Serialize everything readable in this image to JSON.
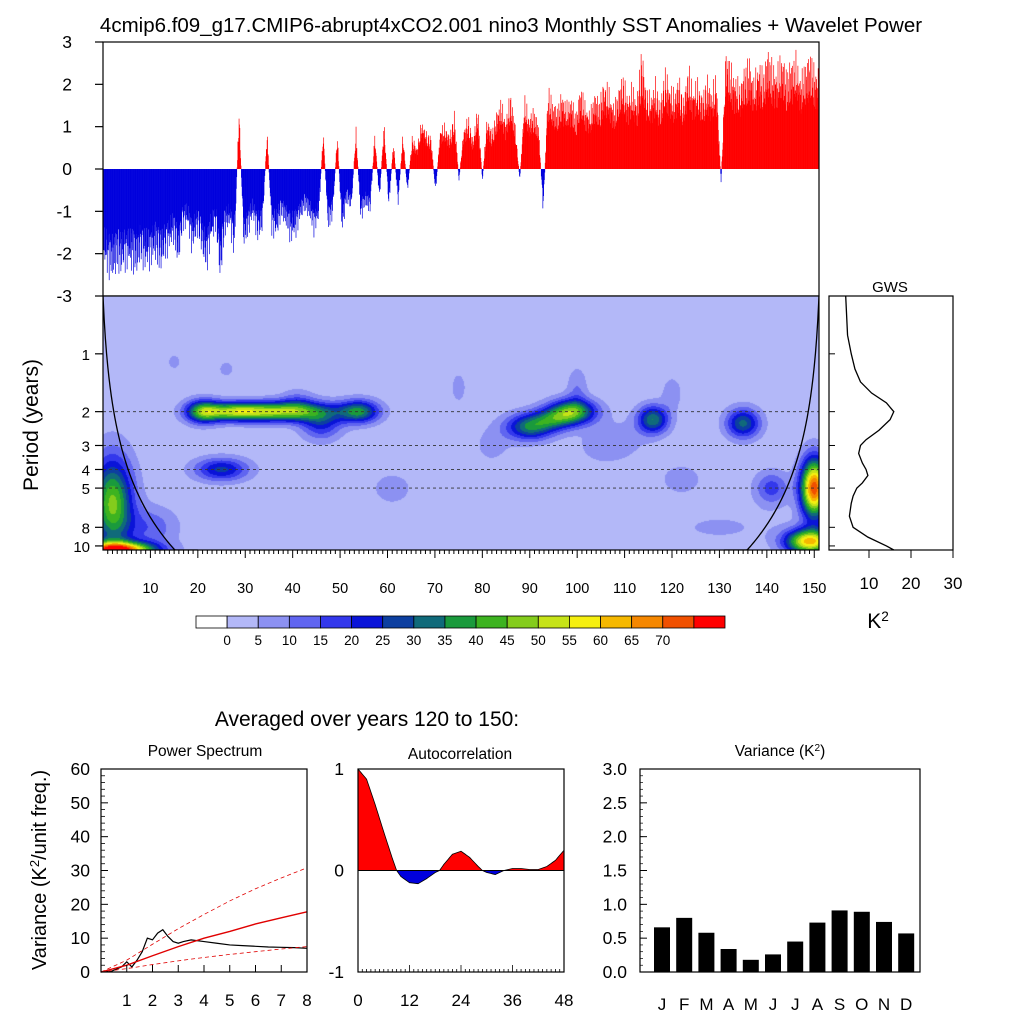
{
  "main_title": "4cmip6.f09_g17.CMIP6-abrupt4xCO2.001 nino3 Monthly SST Anomalies + Wavelet Power",
  "colors": {
    "positive": "#ff0000",
    "negative": "#0000dd",
    "spectrum": "#000000",
    "red_noise": "#e00000"
  },
  "chart_data": [
    {
      "id": "sst-anomaly",
      "type": "bar",
      "title": "",
      "xlabel": "",
      "ylabel": "",
      "xlim": [
        0,
        151
      ],
      "ylim": [
        -3,
        3
      ],
      "yticks": [
        "3",
        "2",
        "1",
        "0",
        "-1",
        "-2",
        "-3"
      ],
      "anomalies_by_year": [
        -2.4,
        -2.6,
        -2.7,
        -2.5,
        -2.6,
        -2.4,
        -2.5,
        -2.6,
        -2.3,
        -2.5,
        -2.4,
        -2.2,
        -2.5,
        -2.3,
        -2.0,
        -1.8,
        -2.4,
        -1.5,
        -1.4,
        -2.1,
        -1.6,
        -2.0,
        -2.6,
        -1.8,
        -1.5,
        -2.8,
        -1.6,
        -1.4,
        -2.2,
        1.6,
        -2.0,
        -1.6,
        -1.2,
        -1.8,
        -1.5,
        1.0,
        -1.6,
        -1.7,
        -1.2,
        -1.4,
        -1.8,
        -1.7,
        -1.3,
        -1.0,
        -1.2,
        -1.6,
        -1.3,
        1.0,
        -1.5,
        -1.2,
        0.9,
        -1.6,
        -0.8,
        -1.0,
        1.0,
        -1.3,
        -0.9,
        -1.1,
        0.9,
        -0.8,
        1.2,
        -1.0,
        0.7,
        -0.9,
        0.9,
        -0.6,
        0.8,
        0.5,
        1.2,
        0.9,
        0.8,
        -0.6,
        1.0,
        1.1,
        0.8,
        1.4,
        -0.3,
        1.0,
        1.3,
        0.7,
        1.6,
        -0.3,
        1.3,
        0.9,
        1.4,
        1.7,
        1.2,
        1.9,
        1.1,
        -0.3,
        1.8,
        1.3,
        1.5,
        1.1,
        -1.1,
        2.0,
        1.7,
        1.5,
        1.9,
        1.6,
        1.8,
        1.3,
        2.1,
        1.6,
        1.4,
        1.9,
        1.7,
        2.2,
        2.0,
        1.6,
        1.9,
        2.4,
        1.8,
        2.1,
        1.7,
        3.0,
        2.0,
        1.8,
        2.2,
        1.6,
        2.5,
        2.1,
        1.9,
        2.3,
        1.7,
        2.6,
        2.0,
        2.2,
        1.8,
        2.3,
        1.9,
        2.4,
        -0.4,
        3.0,
        2.6,
        2.3,
        2.1,
        2.5,
        2.8,
        2.2,
        2.7,
        2.4,
        3.0,
        2.6,
        2.5,
        2.9,
        2.4,
        2.7,
        2.8,
        2.3,
        2.6,
        2.9,
        2.5
      ]
    },
    {
      "id": "wavelet-power",
      "type": "heatmap",
      "title": "",
      "xlabel": "",
      "ylabel": "Period (years)",
      "xlim": [
        0,
        151
      ],
      "xticks": [
        10,
        20,
        30,
        40,
        50,
        60,
        70,
        80,
        90,
        100,
        110,
        120,
        130,
        140,
        150
      ],
      "period_ticks": [
        1,
        2,
        3,
        4,
        5,
        8,
        10
      ],
      "period_range": [
        0.5,
        10.5
      ],
      "significant_periods": [
        2,
        3,
        4,
        5
      ],
      "power_blobs": [
        {
          "year": 21,
          "period": 2.0,
          "sx": 2.5,
          "sy": 0.14,
          "amp": 35
        },
        {
          "year": 27,
          "period": 2.0,
          "sx": 4.0,
          "sy": 0.11,
          "amp": 25
        },
        {
          "year": 36,
          "period": 2.0,
          "sx": 8.0,
          "sy": 0.12,
          "amp": 48
        },
        {
          "year": 46,
          "period": 2.3,
          "sx": 3.0,
          "sy": 0.2,
          "amp": 20
        },
        {
          "year": 54,
          "period": 2.0,
          "sx": 3.0,
          "sy": 0.14,
          "amp": 33
        },
        {
          "year": 25,
          "period": 4.0,
          "sx": 4.0,
          "sy": 0.14,
          "amp": 25
        },
        {
          "year": 41,
          "period": 1.8,
          "sx": 2.5,
          "sy": 0.16,
          "amp": 10
        },
        {
          "year": 90,
          "period": 2.4,
          "sx": 3.5,
          "sy": 0.16,
          "amp": 33
        },
        {
          "year": 99,
          "period": 2.0,
          "sx": 3.5,
          "sy": 0.15,
          "amp": 42
        },
        {
          "year": 95,
          "period": 2.2,
          "sx": 3.0,
          "sy": 0.13,
          "amp": 20
        },
        {
          "year": 116,
          "period": 2.2,
          "sx": 2.3,
          "sy": 0.17,
          "amp": 33
        },
        {
          "year": 135,
          "period": 2.3,
          "sx": 2.5,
          "sy": 0.18,
          "amp": 30
        },
        {
          "year": 2,
          "period": 6.0,
          "sx": 3.0,
          "sy": 0.55,
          "amp": 45
        },
        {
          "year": 3,
          "period": 10.5,
          "sx": 5.5,
          "sy": 0.1,
          "amp": 72
        },
        {
          "year": 150,
          "period": 5.0,
          "sx": 2.0,
          "sy": 0.35,
          "amp": 72
        },
        {
          "year": 149,
          "period": 9.5,
          "sx": 3.5,
          "sy": 0.15,
          "amp": 60
        },
        {
          "year": 141,
          "period": 5.0,
          "sx": 2.5,
          "sy": 0.2,
          "amp": 16
        },
        {
          "year": 61,
          "period": 5.0,
          "sx": 4.0,
          "sy": 0.25,
          "amp": 5
        },
        {
          "year": 82,
          "period": 3.0,
          "sx": 3.0,
          "sy": 0.25,
          "amp": 5
        },
        {
          "year": 105,
          "period": 3.0,
          "sx": 4.0,
          "sy": 0.25,
          "amp": 5
        },
        {
          "year": 122,
          "period": 4.5,
          "sx": 3.0,
          "sy": 0.18,
          "amp": 7
        },
        {
          "year": 110,
          "period": 2.8,
          "sx": 4.0,
          "sy": 0.25,
          "amp": 4
        },
        {
          "year": 10,
          "period": 8.0,
          "sx": 4.0,
          "sy": 0.25,
          "amp": 12
        },
        {
          "year": 47,
          "period": 8.0,
          "sx": 10.0,
          "sy": 0.22,
          "amp": 3
        },
        {
          "year": 68,
          "period": 8.0,
          "sx": 8.0,
          "sy": 0.2,
          "amp": 2
        },
        {
          "year": 130,
          "period": 8.0,
          "sx": 10.0,
          "sy": 0.25,
          "amp": 4
        },
        {
          "year": 75,
          "period": 1.5,
          "sx": 1.2,
          "sy": 0.2,
          "amp": 6
        },
        {
          "year": 100,
          "period": 1.5,
          "sx": 1.5,
          "sy": 0.25,
          "amp": 8
        },
        {
          "year": 120,
          "period": 1.6,
          "sx": 1.5,
          "sy": 0.2,
          "amp": 7
        },
        {
          "year": 26,
          "period": 1.2,
          "sx": 1.2,
          "sy": 0.1,
          "amp": 6
        },
        {
          "year": 15,
          "period": 1.1,
          "sx": 1.0,
          "sy": 0.1,
          "amp": 6
        }
      ]
    },
    {
      "id": "global-wavelet-spectrum",
      "type": "line",
      "title": "GWS",
      "xlabel": "K²",
      "ylabel": "",
      "xlim": [
        0,
        30
      ],
      "xticks": [
        10,
        20,
        30
      ],
      "period": [
        0.5,
        0.8,
        1.0,
        1.2,
        1.4,
        1.6,
        1.8,
        2.0,
        2.2,
        2.5,
        2.8,
        3.0,
        3.3,
        3.7,
        4.0,
        4.3,
        4.7,
        5.0,
        5.5,
        6.0,
        7.0,
        8.0,
        9.0,
        10.0,
        10.5
      ],
      "power": [
        1.0,
        1.5,
        2.5,
        3.5,
        5.0,
        8.0,
        12.0,
        14.0,
        13.0,
        10.0,
        6.5,
        5.0,
        4.5,
        5.5,
        6.5,
        7.0,
        5.5,
        4.0,
        3.0,
        2.5,
        2.0,
        3.0,
        7.0,
        12.0,
        14.0
      ]
    },
    {
      "id": "power-spectrum",
      "type": "line",
      "title": "Power Spectrum",
      "xlabel": "",
      "ylabel": "Variance (K²/unit freq.)",
      "xlim": [
        0,
        8
      ],
      "ylim": [
        0,
        60
      ],
      "xticks": [
        1,
        2,
        3,
        4,
        5,
        6,
        7,
        8
      ],
      "yticks": [
        0,
        10,
        20,
        30,
        40,
        50,
        60
      ],
      "series": [
        {
          "style": "spectrum",
          "x": [
            0,
            0.4,
            0.8,
            1.0,
            1.2,
            1.4,
            1.6,
            1.8,
            2.0,
            2.2,
            2.4,
            2.6,
            2.8,
            3.0,
            3.2,
            3.5,
            4.0,
            4.5,
            5.0,
            5.5,
            6.0,
            6.5,
            7.0,
            7.5,
            8.0
          ],
          "y": [
            0,
            0.2,
            1.5,
            3.0,
            1.5,
            3.5,
            6.0,
            10.0,
            9.5,
            11.5,
            12.5,
            10.5,
            9.0,
            8.5,
            9.0,
            9.5,
            9.0,
            8.5,
            8.0,
            7.8,
            7.6,
            7.4,
            7.3,
            7.2,
            7.0
          ]
        },
        {
          "style": "red-noise",
          "x": [
            0,
            1,
            2,
            3,
            4,
            5,
            6,
            7,
            8
          ],
          "y": [
            0,
            2.0,
            4.8,
            7.5,
            10.0,
            12.0,
            14.2,
            16.0,
            17.8
          ]
        },
        {
          "style": "red-noise-upper",
          "x": [
            0,
            1,
            2,
            3,
            4,
            5,
            6,
            7,
            8
          ],
          "y": [
            0,
            3.5,
            8.2,
            12.8,
            17.0,
            21.0,
            24.6,
            27.8,
            30.8
          ]
        },
        {
          "style": "red-noise-lower",
          "x": [
            0,
            1,
            2,
            3,
            4,
            5,
            6,
            7,
            8
          ],
          "y": [
            0,
            1.0,
            2.2,
            3.3,
            4.3,
            5.2,
            6.0,
            6.8,
            7.5
          ]
        }
      ]
    },
    {
      "id": "autocorrelation",
      "type": "area",
      "title": "Autocorrelation",
      "xlabel": "",
      "ylabel": "",
      "xlim": [
        0,
        48
      ],
      "ylim": [
        -1,
        1
      ],
      "xticks": [
        0,
        12,
        24,
        36,
        48
      ],
      "yticks": [
        1,
        0,
        -1
      ],
      "lag": [
        0,
        2,
        4,
        6,
        8,
        9,
        10,
        12,
        14,
        16,
        18,
        19,
        20,
        22,
        24,
        26,
        28,
        29,
        30,
        32,
        34,
        36,
        38,
        40,
        42,
        44,
        46,
        48
      ],
      "acf": [
        1.0,
        0.9,
        0.65,
        0.38,
        0.12,
        0.0,
        -0.06,
        -0.12,
        -0.13,
        -0.08,
        -0.02,
        0.0,
        0.06,
        0.16,
        0.19,
        0.13,
        0.04,
        0.0,
        -0.02,
        -0.04,
        0.0,
        0.02,
        0.02,
        0.01,
        0.01,
        0.04,
        0.1,
        0.2
      ]
    },
    {
      "id": "monthly-variance",
      "type": "bar",
      "title": "Variance (K²)",
      "xlabel": "",
      "ylabel": "",
      "ylim": [
        0,
        3.0
      ],
      "yticks": [
        "3.0",
        "2.5",
        "2.0",
        "1.5",
        "1.0",
        "0.5",
        "0.0"
      ],
      "categories": [
        "J",
        "F",
        "M",
        "A",
        "M",
        "J",
        "J",
        "A",
        "S",
        "O",
        "N",
        "D"
      ],
      "values": [
        0.66,
        0.8,
        0.58,
        0.34,
        0.18,
        0.26,
        0.45,
        0.73,
        0.91,
        0.89,
        0.74,
        0.57
      ]
    }
  ],
  "bottom_section": {
    "heading": "Averaged over years 120 to 150:"
  },
  "wavelet_colorbar": {
    "labels": [
      "0",
      "5",
      "10",
      "15",
      "20",
      "25",
      "30",
      "35",
      "40",
      "45",
      "50",
      "55",
      "60",
      "65",
      "70"
    ],
    "colors": [
      "#ffffff",
      "#b3b8f8",
      "#8c91f2",
      "#6065f0",
      "#3338ec",
      "#0a14d8",
      "#0d3fa0",
      "#106a7a",
      "#1a9a3c",
      "#3db320",
      "#84cc1c",
      "#c6e318",
      "#f5ef10",
      "#f5b800",
      "#f58700",
      "#f05000",
      "#ff0000"
    ]
  }
}
